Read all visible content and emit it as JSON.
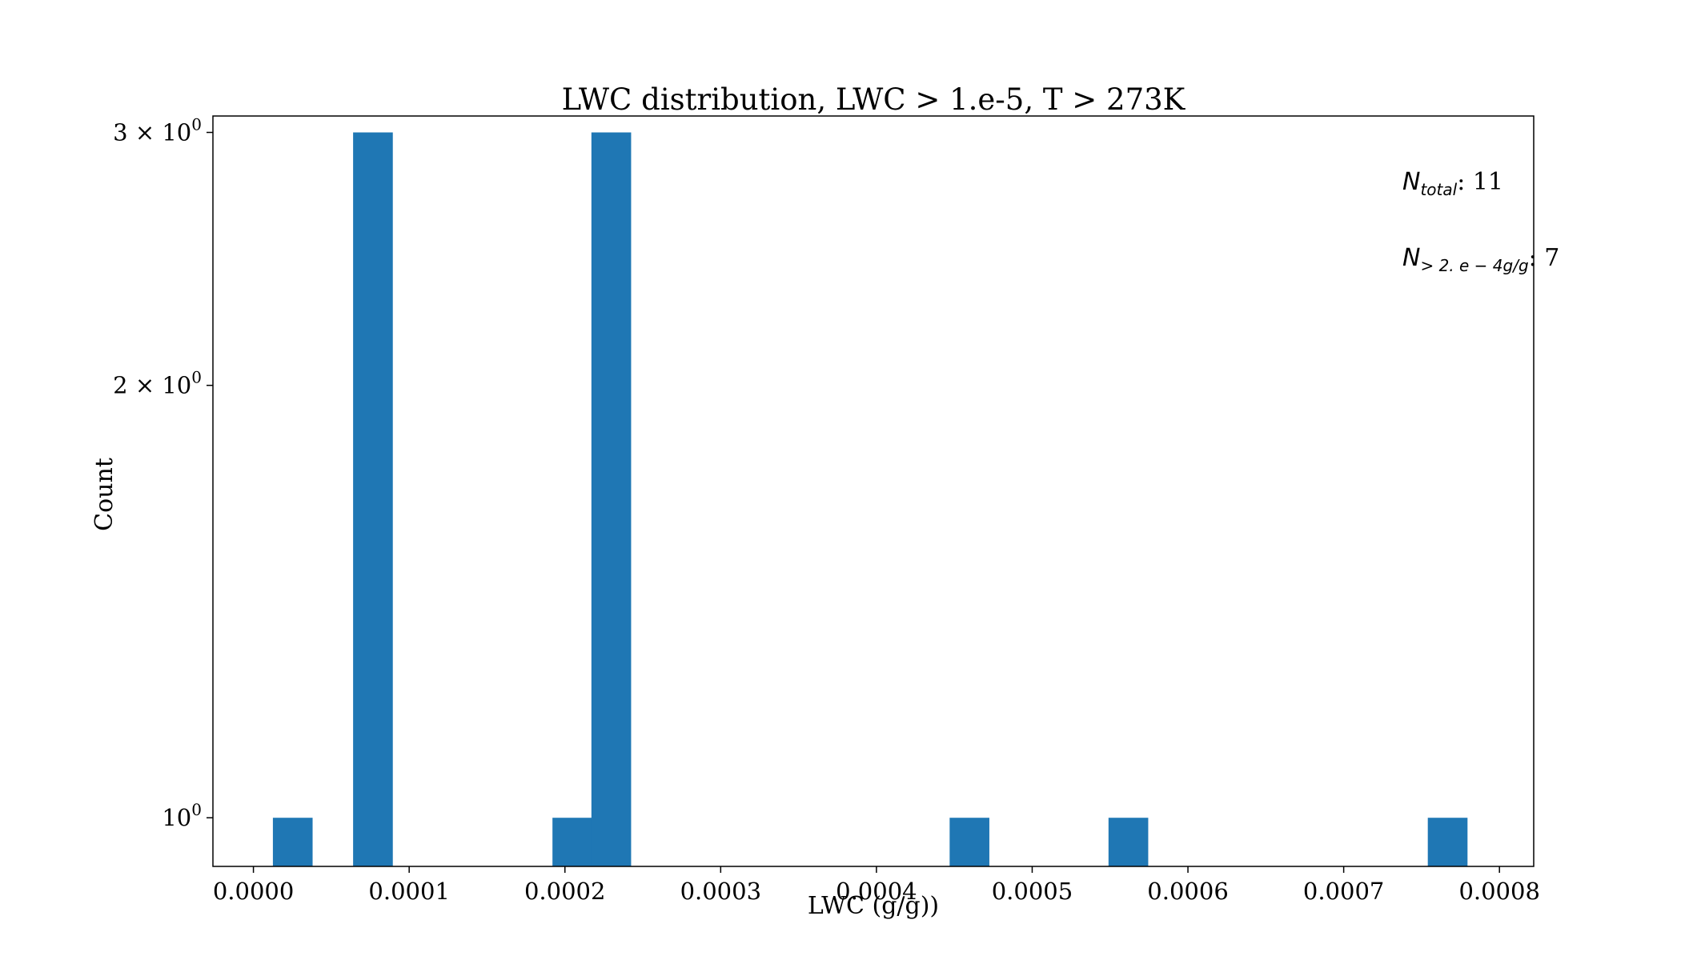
{
  "chart_data": {
    "type": "bar",
    "title": "LWC distribution, LWC > 1.e-5, T > 273K",
    "xlabel": "LWC (g/g))",
    "ylabel": "Count",
    "xlim": [
      -2.6e-05,
      0.000822
    ],
    "ylim": [
      0.925,
      3.08
    ],
    "yscale": "log",
    "bin_width": 2.55e-05,
    "x_ticks": [
      {
        "value": 0.0,
        "label": "0.0000"
      },
      {
        "value": 0.0001,
        "label": "0.0001"
      },
      {
        "value": 0.0002,
        "label": "0.0002"
      },
      {
        "value": 0.0003,
        "label": "0.0003"
      },
      {
        "value": 0.0004,
        "label": "0.0004"
      },
      {
        "value": 0.0005,
        "label": "0.0005"
      },
      {
        "value": 0.0006,
        "label": "0.0006"
      },
      {
        "value": 0.0007,
        "label": "0.0007"
      },
      {
        "value": 0.0008,
        "label": "0.0008"
      }
    ],
    "y_ticks": [
      {
        "value": 1,
        "mantissa": "10",
        "exponent": "0"
      },
      {
        "value": 2,
        "mantissa": "2 × 10",
        "exponent": "0"
      },
      {
        "value": 3,
        "mantissa": "3 × 10",
        "exponent": "0"
      }
    ],
    "bars": [
      {
        "x": 1.25e-05,
        "count": 1
      },
      {
        "x": 6.4e-05,
        "count": 3
      },
      {
        "x": 0.000192,
        "count": 1
      },
      {
        "x": 0.000217,
        "count": 3
      },
      {
        "x": 0.000447,
        "count": 1
      },
      {
        "x": 0.000549,
        "count": 1
      },
      {
        "x": 0.000754,
        "count": 1
      }
    ],
    "bar_color": "#1f77b4",
    "grid": false,
    "legend": "none"
  },
  "annotations": {
    "n_total": {
      "symbol": "N",
      "subscript": "total",
      "rest": ": 11"
    },
    "n_threshold": {
      "symbol": "N",
      "subscript": "> 2. e − 4g/g",
      "rest": ": 7"
    }
  }
}
